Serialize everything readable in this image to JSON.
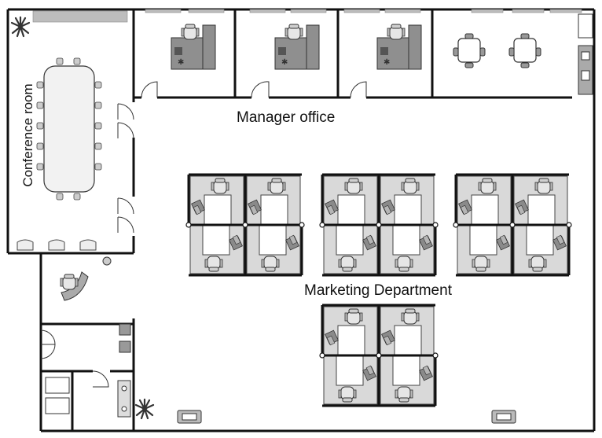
{
  "floorplan": {
    "rooms": {
      "conference": "Conference room",
      "manager": "Manager office",
      "marketing": "Marketing Department"
    }
  }
}
